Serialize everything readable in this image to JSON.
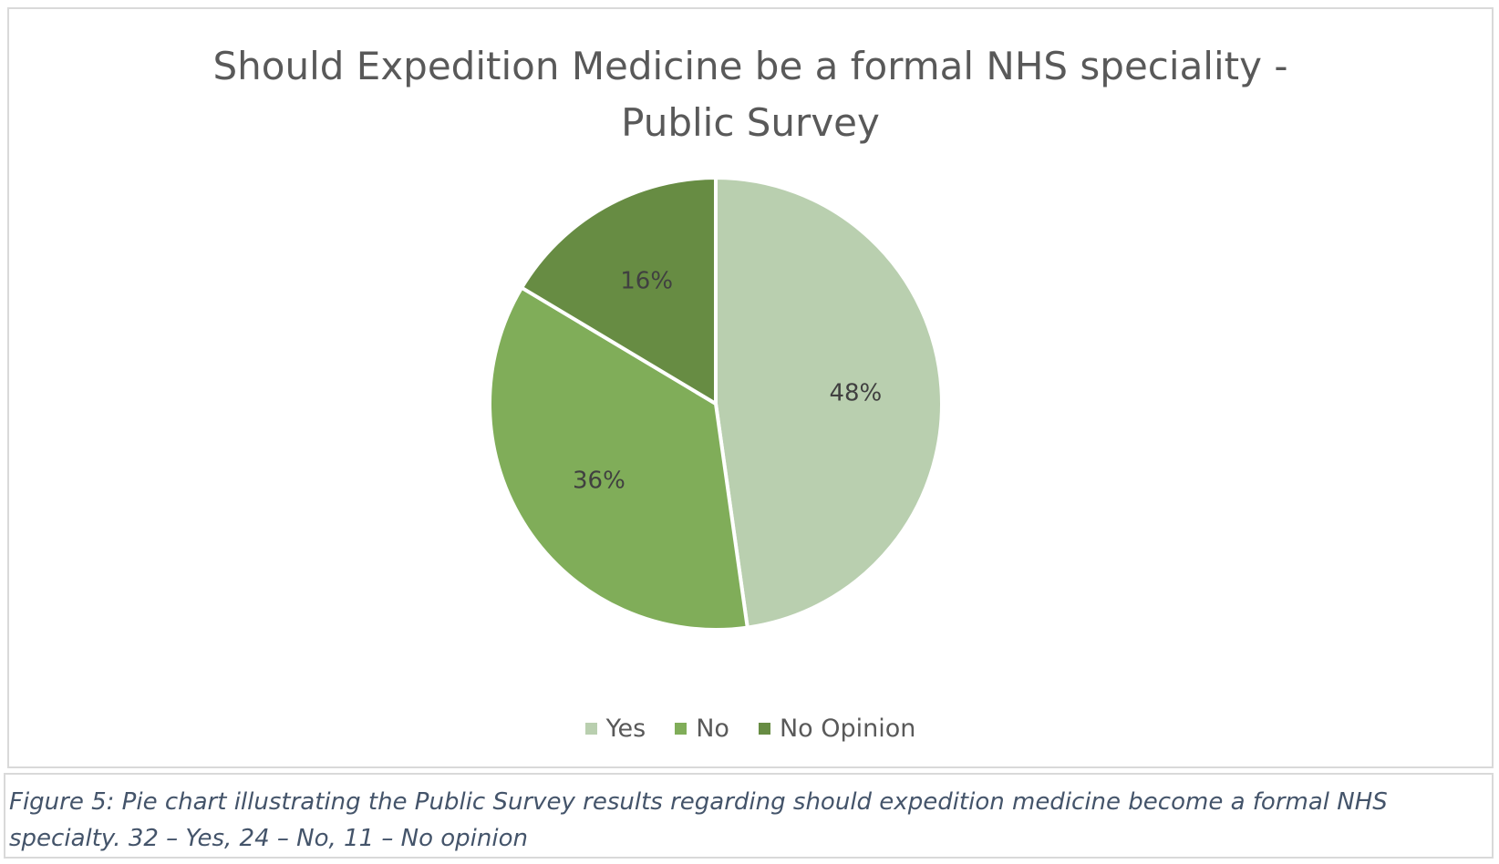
{
  "chart_data": {
    "type": "pie",
    "title": [
      "Should Expedition Medicine be a formal NHS speciality -",
      "Public Survey"
    ],
    "categories": [
      "Yes",
      "No",
      "No Opinion"
    ],
    "values": [
      32,
      24,
      11
    ],
    "labels": [
      "48%",
      "36%",
      "16%"
    ],
    "colors": [
      "#b9cfaf",
      "#80ad59",
      "#678c43"
    ],
    "start": "12 o'clock",
    "direction": "clockwise",
    "legend_position": "bottom"
  },
  "caption": "Figure 5: Pie chart illustrating the Public Survey results regarding should expedition medicine become a formal NHS specialty. 32 – Yes, 24 – No, 11 – No opinion"
}
